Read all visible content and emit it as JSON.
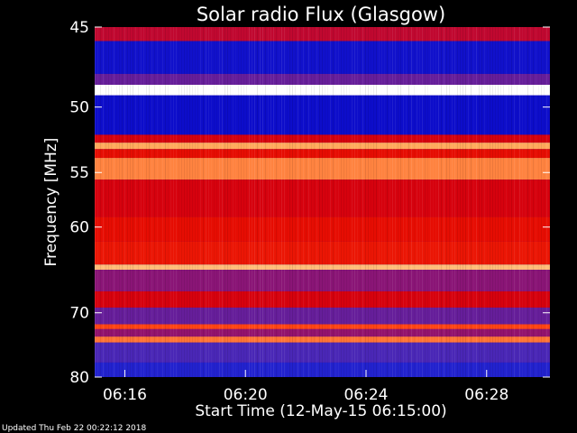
{
  "chart_data": {
    "type": "heatmap",
    "title": "Solar radio Flux (Glasgow)",
    "xlabel": "Start Time (12-May-15 06:15:00)",
    "ylabel": "Frequency [MHz]",
    "x_ticks": [
      "06:16",
      "06:20",
      "06:24",
      "06:28"
    ],
    "x_tick_minutes": [
      16,
      20,
      24,
      28
    ],
    "x_range_minutes": [
      15.0,
      30.1
    ],
    "y_ticks": [
      45,
      50,
      55,
      60,
      70,
      80
    ],
    "y_range_mhz": [
      45,
      80
    ],
    "y_scale": "reciprocal",
    "colormap": [
      "#0000c8",
      "#3030d0",
      "#6020a0",
      "#a01060",
      "#e00000",
      "#ff4010",
      "#ffb060",
      "#ffffff"
    ],
    "bands": [
      {
        "f_from": 45.0,
        "f_to": 45.8,
        "level": 0.5
      },
      {
        "f_from": 45.8,
        "f_to": 47.8,
        "level": 0.05
      },
      {
        "f_from": 47.8,
        "f_to": 48.5,
        "level": 0.3
      },
      {
        "f_from": 48.5,
        "f_to": 49.2,
        "level": 1.0
      },
      {
        "f_from": 49.2,
        "f_to": 52.0,
        "level": 0.04
      },
      {
        "f_from": 52.0,
        "f_to": 52.6,
        "level": 0.55
      },
      {
        "f_from": 52.6,
        "f_to": 53.1,
        "level": 0.85
      },
      {
        "f_from": 53.1,
        "f_to": 53.8,
        "level": 0.6
      },
      {
        "f_from": 53.8,
        "f_to": 55.6,
        "level": 0.8
      },
      {
        "f_from": 55.6,
        "f_to": 59.0,
        "level": 0.55
      },
      {
        "f_from": 59.0,
        "f_to": 61.5,
        "level": 0.6
      },
      {
        "f_from": 61.5,
        "f_to": 64.0,
        "level": 0.62
      },
      {
        "f_from": 64.0,
        "f_to": 64.6,
        "level": 0.88
      },
      {
        "f_from": 64.6,
        "f_to": 67.2,
        "level": 0.38
      },
      {
        "f_from": 67.2,
        "f_to": 69.3,
        "level": 0.55
      },
      {
        "f_from": 69.3,
        "f_to": 71.6,
        "level": 0.3
      },
      {
        "f_from": 71.6,
        "f_to": 72.3,
        "level": 0.72
      },
      {
        "f_from": 72.3,
        "f_to": 73.4,
        "level": 0.4
      },
      {
        "f_from": 73.4,
        "f_to": 74.3,
        "level": 0.78
      },
      {
        "f_from": 74.3,
        "f_to": 77.5,
        "level": 0.22
      },
      {
        "f_from": 77.5,
        "f_to": 80.0,
        "level": 0.1
      }
    ],
    "footer": "Updated Thu Feb 22 00:22:12 2018"
  }
}
